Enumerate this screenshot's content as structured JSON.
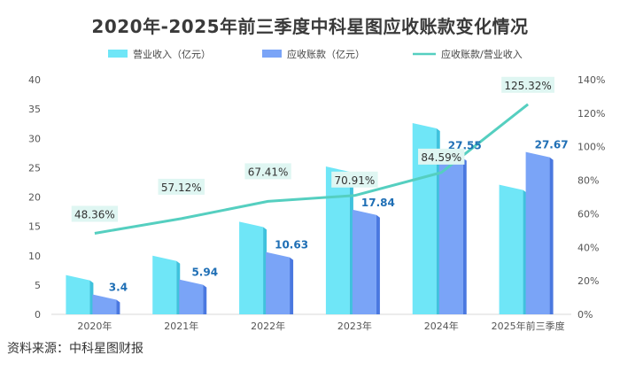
{
  "title": "2020年-2025年前三季度中科星图应收账款变化情况",
  "source": "资料来源：中科星图财报",
  "colors": {
    "revenue": "#6fe6f7",
    "revenue_dark": "#3fc2dd",
    "receivable": "#7aa4f7",
    "receivable_dark": "#4a78e0",
    "ratio": "#55cfc0",
    "ratio_label_bg": "#dff6f2",
    "bar_label": "#1f6fb5"
  },
  "chart_data": {
    "type": "bar",
    "title": "2020年-2025年前三季度中科星图应收账款变化情况",
    "categories": [
      "2020年",
      "2021年",
      "2022年",
      "2023年",
      "2024年",
      "2025年前三季度"
    ],
    "series": [
      {
        "name": "营业收入（亿元）",
        "type": "bar",
        "axis": "left",
        "values": [
          6.7,
          10.0,
          15.8,
          25.2,
          32.6,
          22.1
        ]
      },
      {
        "name": "应收账款（亿元）",
        "type": "bar",
        "axis": "left",
        "values": [
          3.4,
          5.94,
          10.63,
          17.84,
          27.55,
          27.67
        ],
        "labels": [
          "3.4",
          "5.94",
          "10.63",
          "17.84",
          "27.55",
          "27.67"
        ]
      },
      {
        "name": "应收账款/营业收入",
        "type": "line",
        "axis": "right",
        "values": [
          48.36,
          57.12,
          67.41,
          70.91,
          84.59,
          125.32
        ],
        "labels": [
          "48.36%",
          "57.12%",
          "67.41%",
          "70.91%",
          "84.59%",
          "125.32%"
        ]
      }
    ],
    "y_left": {
      "min": 0,
      "max": 40,
      "step": 5,
      "ticks": [
        "0",
        "5",
        "10",
        "15",
        "20",
        "25",
        "30",
        "35",
        "40"
      ]
    },
    "y_right": {
      "min": 0,
      "max": 140,
      "step": 20,
      "ticks": [
        "0%",
        "20%",
        "40%",
        "60%",
        "80%",
        "100%",
        "120%",
        "140%"
      ]
    },
    "legend_position": "top"
  }
}
